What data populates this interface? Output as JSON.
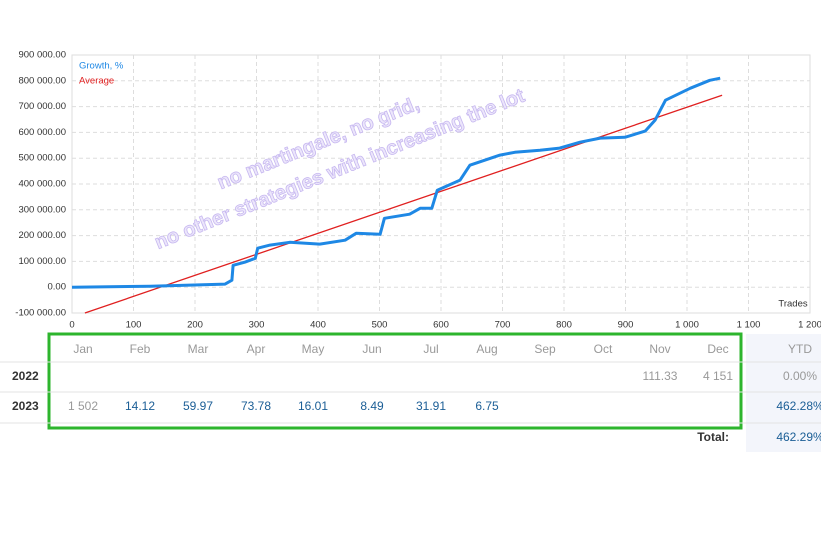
{
  "chart_data": {
    "type": "line",
    "series": [
      {
        "name": "Growth, %",
        "color": "#1e88e5",
        "x": [
          0,
          127,
          249,
          260,
          262,
          281,
          298,
          302,
          322,
          354,
          403,
          444,
          462,
          501,
          508,
          549,
          566,
          585,
          594,
          631,
          647,
          696,
          720,
          761,
          793,
          826,
          859,
          899,
          932,
          948,
          965,
          1005,
          1037,
          1054
        ],
        "values": [
          0,
          4000,
          12000,
          27000,
          85000,
          97000,
          112000,
          151000,
          163000,
          174000,
          167000,
          182000,
          209000,
          205000,
          267000,
          283000,
          306000,
          306000,
          376000,
          415000,
          473000,
          512000,
          523000,
          531000,
          539000,
          562000,
          578000,
          581000,
          605000,
          647000,
          725000,
          771000,
          802000,
          810000
        ]
      },
      {
        "name": "Average",
        "color": "#e02020",
        "x": [
          21,
          1057
        ],
        "values": [
          -100000,
          744000
        ]
      }
    ],
    "xlabel": "Trades",
    "xlim": [
      0,
      1200
    ],
    "xticks": [
      0,
      100,
      200,
      300,
      400,
      500,
      600,
      700,
      800,
      900,
      {
        "value": 1000,
        "label": "1 000"
      },
      {
        "value": 1100,
        "label": "1 100"
      },
      {
        "value": 1200,
        "label": "1 200"
      }
    ],
    "ylim": [
      -100000,
      900000
    ],
    "yticks": [
      {
        "value": -100000,
        "label": "-100 000.00"
      },
      {
        "value": 0,
        "label": "0.00"
      },
      {
        "value": 100000,
        "label": "100 000.00"
      },
      {
        "value": 200000,
        "label": "200 000.00"
      },
      {
        "value": 300000,
        "label": "300 000.00"
      },
      {
        "value": 400000,
        "label": "400 000.00"
      },
      {
        "value": 500000,
        "label": "500 000.00"
      },
      {
        "value": 600000,
        "label": "600 000.00"
      },
      {
        "value": 700000,
        "label": "700 000.00"
      },
      {
        "value": 800000,
        "label": "800 000.00"
      },
      {
        "value": 900000,
        "label": "900 000.00"
      }
    ],
    "grid": true,
    "legend": "top-left",
    "annotations": [
      "no martingale, no grid,",
      "no other strategies with increasing the lot"
    ]
  },
  "table": {
    "header": [
      "Jan",
      "Feb",
      "Mar",
      "Apr",
      "May",
      "Jun",
      "Jul",
      "Aug",
      "Sep",
      "Oct",
      "Nov",
      "Dec",
      "YTD"
    ],
    "rows": [
      {
        "year": "2022",
        "cells": [
          null,
          null,
          null,
          null,
          null,
          null,
          null,
          null,
          null,
          null,
          "111.33",
          "4 151"
        ],
        "ytd": "0.00%"
      },
      {
        "year": "2023",
        "cells": [
          "1 502",
          "14.12",
          "59.97",
          "73.78",
          "16.01",
          "8.49",
          "31.91",
          "6.75",
          null,
          null,
          null,
          null
        ],
        "ytd": "462.28%"
      }
    ],
    "total_label": "Total:",
    "total": "462.29%"
  }
}
